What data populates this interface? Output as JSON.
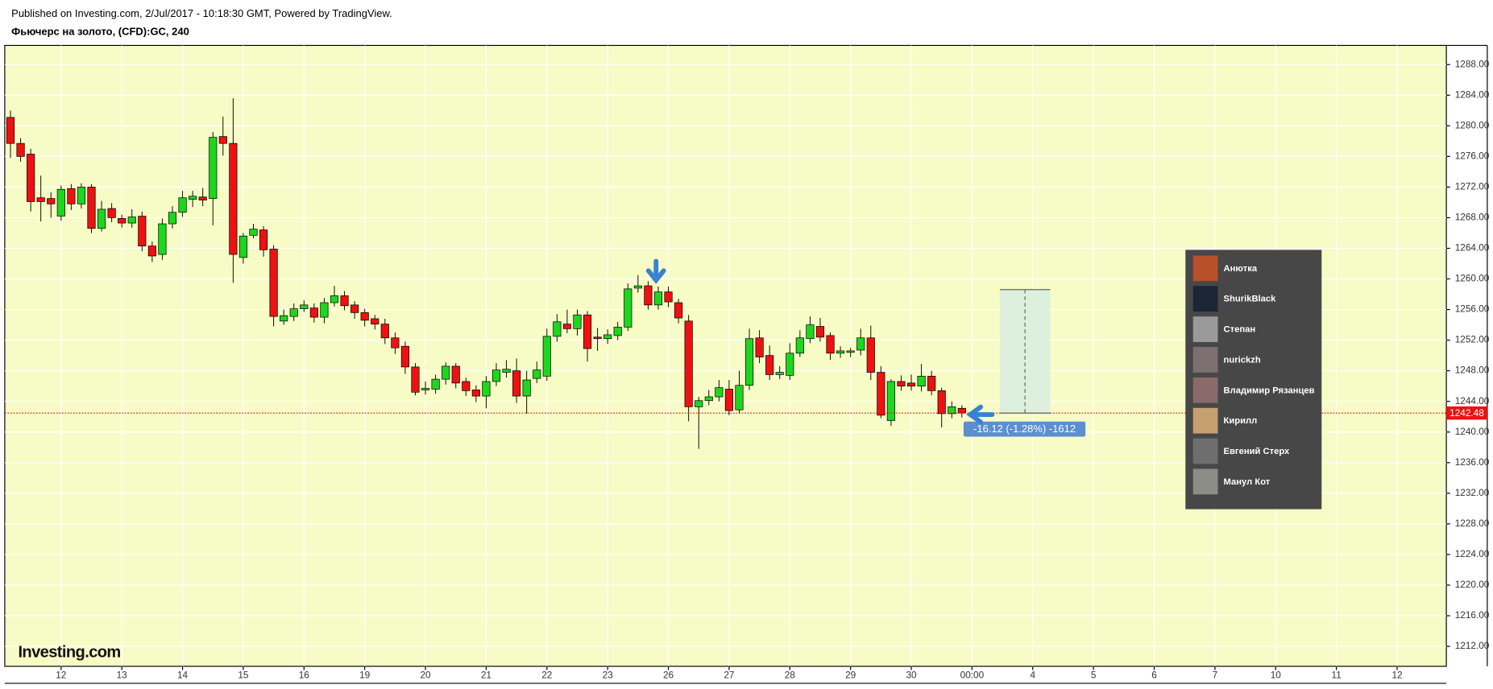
{
  "chart_data": {
    "type": "candlestick",
    "subtitle": "Published on Investing.com, 2/Jul/2017 - 10:18:30 GMT, Powered by TradingView.",
    "title": "Фьючерс на золото, (CFD):GC, 240",
    "x_labels": [
      "12",
      "13",
      "14",
      "15",
      "16",
      "19",
      "20",
      "21",
      "22",
      "23",
      "26",
      "27",
      "28",
      "29",
      "30",
      "00:00",
      "4",
      "5",
      "6",
      "7",
      "10",
      "11",
      "12"
    ],
    "open": [
      1281.1,
      1277.7,
      1276.3,
      1270.6,
      1270.5,
      1268.2,
      1271.8,
      1269.8,
      1272,
      1266.6,
      1269.2,
      1267.9,
      1267.3,
      1268.2,
      1264.3,
      1263.2,
      1267.2,
      1268.7,
      1270.4,
      1270.7,
      1270.5,
      1278.6,
      1277.7,
      1262.8,
      1265.7,
      1266.4,
      1263.9,
      1254.5,
      1255.1,
      1256.1,
      1256.2,
      1255,
      1256.9,
      1257.8,
      1256.6,
      1255.6,
      1254.8,
      1254.1,
      1252.3,
      1251.2,
      1248.5,
      1245.5,
      1245.6,
      1246.9,
      1248.6,
      1246.6,
      1245.5,
      1244.7,
      1246.6,
      1247.8,
      1248,
      1244.7,
      1247,
      1247.3,
      1252.5,
      1254.1,
      1253.5,
      1255.3,
      1252.4,
      1252.2,
      1252.6,
      1253.7,
      1258.8,
      1259.1,
      1256.6,
      1258.3,
      1256.9,
      1254.5,
      1243.3,
      1244.1,
      1244.6,
      1245.6,
      1242.9,
      1246.1,
      1252.3,
      1250,
      1247.5,
      1247.4,
      1250.3,
      1252.2,
      1253.8,
      1252.6,
      1250.3,
      1250.4,
      1250.7,
      1252.3,
      1247.8,
      1241.5,
      1246.6,
      1246.4,
      1246,
      1247.3,
      1245.4,
      1242.4,
      1243.1
    ],
    "high": [
      1282.0,
      1278.4,
      1277.0,
      1273.5,
      1271.3,
      1272.2,
      1272.4,
      1272.5,
      1272.4,
      1270.2,
      1269.9,
      1268.4,
      1269.1,
      1268.8,
      1264.9,
      1267.9,
      1269.5,
      1271.5,
      1271.5,
      1271.9,
      1279.2,
      1281.2,
      1283.6,
      1266.0,
      1267.2,
      1266.9,
      1264.4,
      1256.0,
      1256.8,
      1257.2,
      1256.8,
      1257.5,
      1259.1,
      1258.4,
      1257.1,
      1256.1,
      1255.3,
      1254.8,
      1253.0,
      1251.8,
      1249.0,
      1246.6,
      1247.5,
      1249.1,
      1249.0,
      1247.1,
      1246.1,
      1247.3,
      1249.0,
      1249.4,
      1249.6,
      1248.0,
      1249.2,
      1253.5,
      1255.4,
      1256.0,
      1256.0,
      1255.8,
      1253.6,
      1253.4,
      1254.4,
      1259.4,
      1260.5,
      1259.7,
      1259.0,
      1259.0,
      1257.4,
      1255.3,
      1244.6,
      1245.5,
      1246.8,
      1246.8,
      1248.0,
      1253.5,
      1253.3,
      1251.3,
      1248.6,
      1251.6,
      1253.3,
      1255.1,
      1254.9,
      1253.0,
      1251.2,
      1251.0,
      1253.5,
      1253.9,
      1248.6,
      1246.9,
      1247.4,
      1247.5,
      1248.9,
      1248.0,
      1245.8,
      1244.0,
      1243.5
    ],
    "low": [
      1275.8,
      1275.3,
      1268.8,
      1267.5,
      1268.0,
      1267.6,
      1269.0,
      1269.2,
      1266.0,
      1266.2,
      1267.4,
      1266.7,
      1266.7,
      1263.6,
      1262.2,
      1262.5,
      1266.6,
      1268.1,
      1269.4,
      1269.5,
      1267.0,
      1276.1,
      1259.5,
      1262.0,
      1265.3,
      1262.9,
      1253.8,
      1254.0,
      1254.5,
      1255.7,
      1254.3,
      1254.2,
      1256.4,
      1255.9,
      1254.8,
      1253.8,
      1253.4,
      1251.5,
      1250.2,
      1247.6,
      1244.8,
      1244.9,
      1245.0,
      1246.2,
      1245.7,
      1244.7,
      1243.9,
      1243.1,
      1246.0,
      1247.1,
      1243.8,
      1242.4,
      1246.4,
      1246.7,
      1251.8,
      1252.9,
      1252.6,
      1249.2,
      1250.6,
      1251.5,
      1252.0,
      1253.2,
      1258.2,
      1256.0,
      1256.0,
      1256.3,
      1254.2,
      1241.4,
      1237.8,
      1243.5,
      1244.0,
      1242.2,
      1242.4,
      1245.5,
      1249.0,
      1246.8,
      1246.9,
      1246.8,
      1249.8,
      1251.6,
      1251.8,
      1249.4,
      1249.7,
      1249.8,
      1250.0,
      1246.8,
      1241.8,
      1240.8,
      1245.4,
      1245.4,
      1245.3,
      1244.8,
      1240.6,
      1241.8,
      1241.9
    ],
    "close": [
      1277.7,
      1276,
      1270.1,
      1270.1,
      1269.8,
      1271.7,
      1269.8,
      1272,
      1266.6,
      1269.1,
      1268,
      1267.3,
      1268.1,
      1264.3,
      1263,
      1267.2,
      1268.7,
      1270.6,
      1270.8,
      1270.3,
      1278.5,
      1277.7,
      1263.2,
      1265.6,
      1266.5,
      1263.8,
      1255.1,
      1255.2,
      1256.1,
      1256.6,
      1255,
      1256.9,
      1257.8,
      1256.5,
      1255.6,
      1254.6,
      1254.1,
      1252.3,
      1251,
      1248.5,
      1245.2,
      1245.7,
      1246.9,
      1248.6,
      1246.4,
      1245.4,
      1244.7,
      1246.6,
      1248.1,
      1248.2,
      1244.7,
      1246.8,
      1248.1,
      1252.5,
      1254.4,
      1253.5,
      1255.3,
      1250.9,
      1252.2,
      1252.7,
      1253.7,
      1258.7,
      1259.1,
      1256.6,
      1258.3,
      1257,
      1254.9,
      1243.3,
      1244.1,
      1244.6,
      1245.8,
      1242.8,
      1246.1,
      1252.2,
      1249.8,
      1247.5,
      1247.8,
      1250.3,
      1252.3,
      1254,
      1252.4,
      1250.3,
      1250.6,
      1250.6,
      1252.3,
      1247.8,
      1242.2,
      1246.6,
      1246,
      1246,
      1247.3,
      1245.4,
      1242.4,
      1243.3,
      1242.48
    ],
    "up_color": "#1ed61e",
    "down_color": "#ee1111",
    "ylim": [
      1209.4,
      1290.5
    ],
    "yticks": [
      {
        "value": 1212,
        "label": "1212.00"
      },
      {
        "value": 1216,
        "label": "1216.00"
      },
      {
        "value": 1220,
        "label": "1220.00"
      },
      {
        "value": 1224,
        "label": "1224.00"
      },
      {
        "value": 1228,
        "label": "1228.00"
      },
      {
        "value": 1232,
        "label": "1232.00"
      },
      {
        "value": 1236,
        "label": "1236.00"
      },
      {
        "value": 1240,
        "label": "1240.00"
      },
      {
        "value": 1244,
        "label": "1244.00"
      },
      {
        "value": 1248,
        "label": "1248.00"
      },
      {
        "value": 1252,
        "label": "1252.00"
      },
      {
        "value": 1256,
        "label": "1256.00"
      },
      {
        "value": 1260,
        "label": "1260.00"
      },
      {
        "value": 1264,
        "label": "1264.00"
      },
      {
        "value": 1268,
        "label": "1268.00"
      },
      {
        "value": 1272,
        "label": "1272.00"
      },
      {
        "value": 1276,
        "label": "1276.00"
      },
      {
        "value": 1280,
        "label": "1280.00"
      },
      {
        "value": 1284,
        "label": "1284.00"
      },
      {
        "value": 1288,
        "label": "1288.00"
      }
    ],
    "grid": true,
    "last_price": 1242.48,
    "measure": {
      "from": 1258.6,
      "to": 1242.48,
      "label": "-16.12 (-1.28%) -1612"
    },
    "logo": "Investing.com"
  },
  "panel": {
    "users": [
      "Анютка",
      "ShurikBlack",
      "Степан",
      "nurickzh",
      "Владимир Рязанцев",
      "Кирилл",
      "Евгений Стерх",
      "Манул Кот"
    ]
  }
}
